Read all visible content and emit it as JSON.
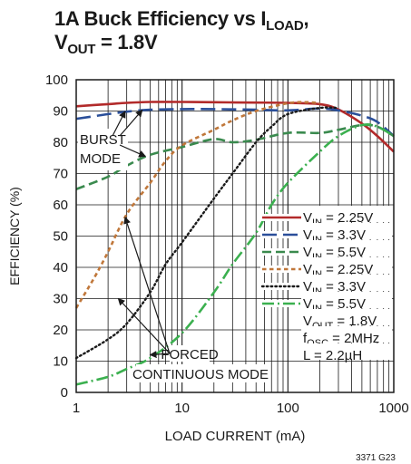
{
  "chart_data": {
    "type": "line",
    "title": {
      "line1": "1A Buck Efficiency vs I",
      "line1_sub": "LOAD",
      "line1_tail": ",",
      "line2": "V",
      "line2_sub": "OUT",
      "line2_tail": " = 1.8V"
    },
    "xlabel": "LOAD CURRENT (mA)",
    "ylabel": "EFFICIENCY (%)",
    "x_scale": "log",
    "xlim": [
      1,
      1000
    ],
    "ylim": [
      0,
      100
    ],
    "x_ticks": [
      1,
      10,
      100,
      1000
    ],
    "x_tick_labels": [
      "1",
      "10",
      "100",
      "1000"
    ],
    "y_ticks": [
      0,
      10,
      20,
      30,
      40,
      50,
      60,
      70,
      80,
      90,
      100
    ],
    "y_tick_labels": [
      "0",
      "10",
      "20",
      "30",
      "40",
      "50",
      "60",
      "70",
      "80",
      "90",
      "100"
    ],
    "grid": true,
    "legend_position": "right-middle",
    "series": [
      {
        "name": "VIN = 2.25V",
        "vin": "2.25V",
        "mode": "burst",
        "color": "#b22a2a",
        "dash": "solid",
        "x": [
          1,
          2,
          3,
          5,
          10,
          20,
          50,
          100,
          200,
          300,
          500,
          700,
          1000
        ],
        "y": [
          91.5,
          92.2,
          92.6,
          92.9,
          92.9,
          92.8,
          92.7,
          92.6,
          92.2,
          90.5,
          86,
          82,
          77
        ]
      },
      {
        "name": "VIN = 3.3V",
        "vin": "3.3V",
        "mode": "burst",
        "color": "#2a4f9a",
        "dash": "long",
        "x": [
          1,
          2,
          3,
          5,
          10,
          20,
          50,
          100,
          200,
          300,
          500,
          700,
          1000
        ],
        "y": [
          87.5,
          89,
          89.8,
          90.4,
          90.6,
          90.6,
          90.4,
          90.2,
          90.8,
          90.2,
          88.5,
          86.5,
          82
        ]
      },
      {
        "name": "VIN = 5.5V",
        "vin": "5.5V",
        "mode": "burst",
        "color": "#3a8a4e",
        "dash": "medium",
        "x": [
          1,
          2,
          3,
          5,
          10,
          20,
          30,
          50,
          100,
          200,
          300,
          500,
          700,
          1000
        ],
        "y": [
          65,
          69,
          72.5,
          76,
          78.5,
          81,
          80,
          80.8,
          83,
          83,
          84,
          85.5,
          85,
          82
        ]
      },
      {
        "name": "VIN = 2.25V",
        "vin": "2.25V",
        "mode": "forced",
        "color": "#c0773a",
        "dash": "short",
        "x": [
          1,
          1.5,
          2,
          3,
          5,
          7,
          10,
          20,
          30,
          50,
          100,
          150,
          200
        ],
        "y": [
          27,
          37,
          45,
          57,
          67,
          74,
          79,
          84,
          87,
          90,
          92.5,
          92.8,
          92.5
        ]
      },
      {
        "name": "VIN = 3.3V",
        "vin": "3.3V",
        "mode": "forced",
        "color": "#1a1a1a",
        "dash": "dot",
        "x": [
          1,
          2,
          3,
          5,
          7,
          10,
          20,
          30,
          50,
          70,
          100,
          200,
          300
        ],
        "y": [
          11,
          17,
          22,
          32,
          41,
          48,
          62,
          70,
          80,
          85,
          89,
          91,
          91
        ]
      },
      {
        "name": "VIN = 5.5V",
        "vin": "5.5V",
        "mode": "forced",
        "color": "#3bb04f",
        "dash": "dashdot",
        "x": [
          1,
          2,
          3,
          5,
          10,
          20,
          30,
          50,
          70,
          100,
          200,
          300,
          500,
          700,
          1000
        ],
        "y": [
          2.5,
          5,
          7.5,
          11,
          19,
          32,
          41,
          51,
          60,
          67,
          77,
          82,
          85.5,
          85,
          82
        ]
      }
    ],
    "legend_entries": [
      {
        "prefix": "V",
        "sub": "IN",
        "rest": " = 2.25V"
      },
      {
        "prefix": "V",
        "sub": "IN",
        "rest": " = 3.3V"
      },
      {
        "prefix": "V",
        "sub": "IN",
        "rest": " = 5.5V"
      },
      {
        "prefix": "V",
        "sub": "IN",
        "rest": " = 2.25V"
      },
      {
        "prefix": "V",
        "sub": "IN",
        "rest": " = 3.3V"
      },
      {
        "prefix": "V",
        "sub": "IN",
        "rest": " = 5.5V"
      }
    ],
    "conditions": [
      {
        "prefix": "V",
        "sub": "OUT",
        "rest": " = 1.8V"
      },
      {
        "prefix": "f",
        "sub": "OSC",
        "rest": " = 2MHz"
      },
      {
        "prefix": "L = 2.2µH",
        "sub": "",
        "rest": ""
      }
    ],
    "annotations": {
      "burst_mode": [
        "BURST",
        "MODE"
      ],
      "forced_mode": [
        "FORCED",
        "CONTINUOUS MODE"
      ],
      "burst_arrow_targets": [
        {
          "x": 2.9,
          "y": 89.9
        },
        {
          "x": 4.2,
          "y": 90.3
        },
        {
          "x": 4.5,
          "y": 75.5
        }
      ],
      "forced_arrow_targets": [
        {
          "x": 2.9,
          "y": 56
        },
        {
          "x": 2.5,
          "y": 30
        },
        {
          "x": 5,
          "y": 12
        }
      ]
    },
    "figure_id": "3371 G23"
  }
}
